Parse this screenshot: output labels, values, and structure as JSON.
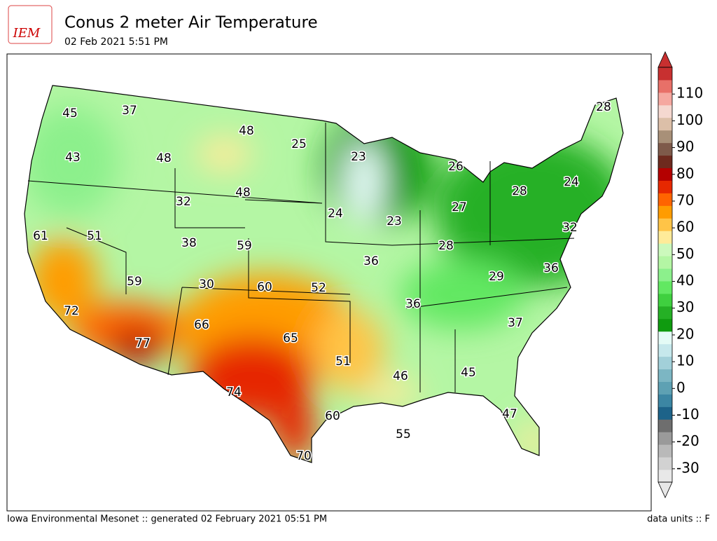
{
  "header": {
    "logo": "IEM",
    "title": "Conus 2 meter Air Temperature",
    "subtitle": "02 Feb 2021 5:51 PM"
  },
  "map_labels": [
    45,
    37,
    48,
    25,
    23,
    26,
    28,
    43,
    48,
    48,
    32,
    24,
    23,
    27,
    28,
    24,
    32,
    61,
    51,
    38,
    59,
    28,
    36,
    36,
    59,
    30,
    60,
    52,
    29,
    36,
    72,
    66,
    37,
    77,
    65,
    51,
    46,
    45,
    74,
    60,
    47,
    55,
    70
  ],
  "colorbar": {
    "lim": [
      -35,
      120
    ],
    "ticks": [
      -30,
      -20,
      -10,
      0,
      10,
      20,
      30,
      40,
      50,
      60,
      70,
      80,
      90,
      100,
      110
    ],
    "colors": [
      "#e8e8e8",
      "#d2d2d2",
      "#b9b9b9",
      "#9a9a9a",
      "#6e6e6e",
      "#1d6389",
      "#3c86a3",
      "#5ea1b3",
      "#7cb6c3",
      "#a2d0d9",
      "#c6e8ec",
      "#e4fbf6",
      "#0f9b0f",
      "#25b025",
      "#3fd03f",
      "#62e862",
      "#8cf08c",
      "#b4f6a4",
      "#ccf9bc",
      "#ffeb99",
      "#ffc447",
      "#ff9c00",
      "#ff6400",
      "#e62800",
      "#b40000",
      "#6e2a1e",
      "#7e5a4a",
      "#a89078",
      "#dcbfa8",
      "#f5d8d0",
      "#f5a8a0",
      "#e87068",
      "#c83030"
    ],
    "under": "#e8e8e8",
    "over": "#c83030"
  },
  "footer": {
    "left": "Iowa Environmental Mesonet :: generated 02 February 2021 05:51 PM",
    "right": "data units :: F"
  }
}
